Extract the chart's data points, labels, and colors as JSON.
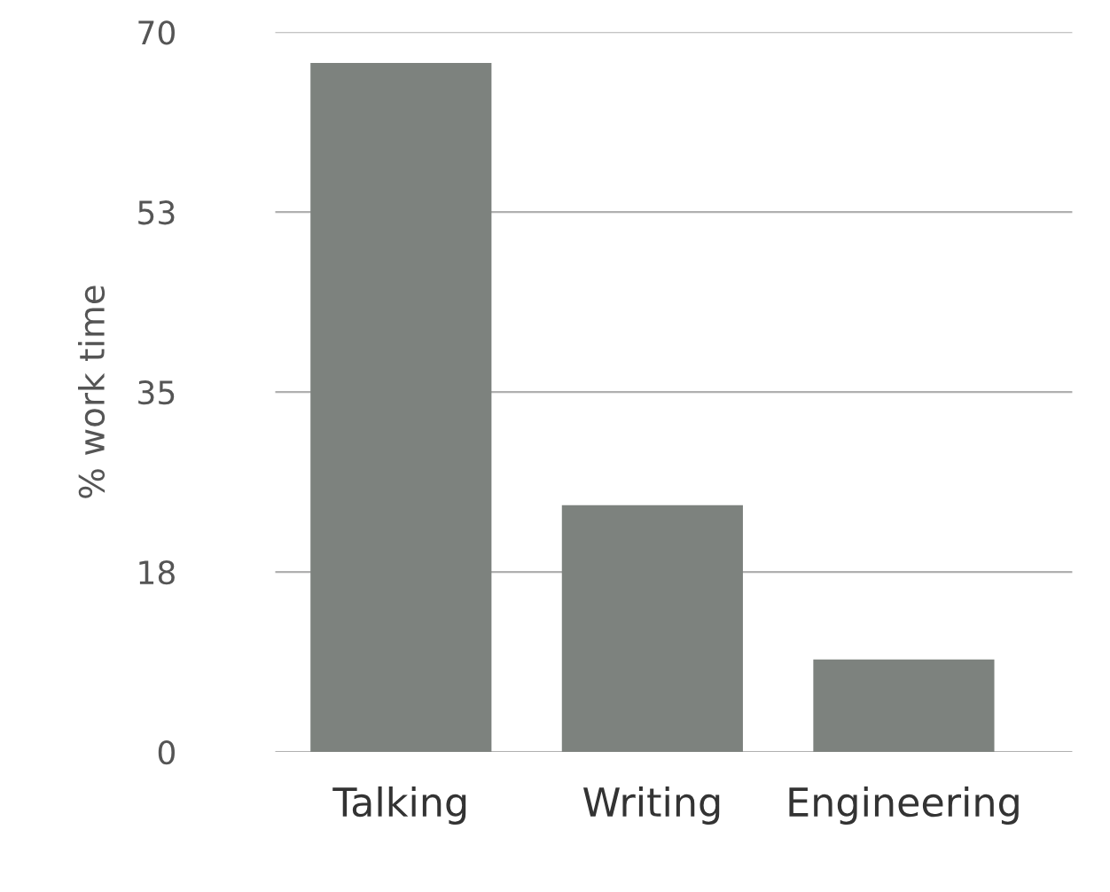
{
  "chart_data": {
    "type": "bar",
    "ylabel": "% work time",
    "categories": [
      "Talking",
      "Writing",
      "Engineering"
    ],
    "values": [
      67,
      24,
      9
    ],
    "color": "#7d827e",
    "ylim": [
      0,
      70
    ],
    "yticks": [
      0,
      {
        "value": 17.5,
        "label": "18"
      },
      {
        "value": 35,
        "label": "35"
      },
      {
        "value": 52.5,
        "label": "53"
      },
      70
    ],
    "grid": "y"
  }
}
